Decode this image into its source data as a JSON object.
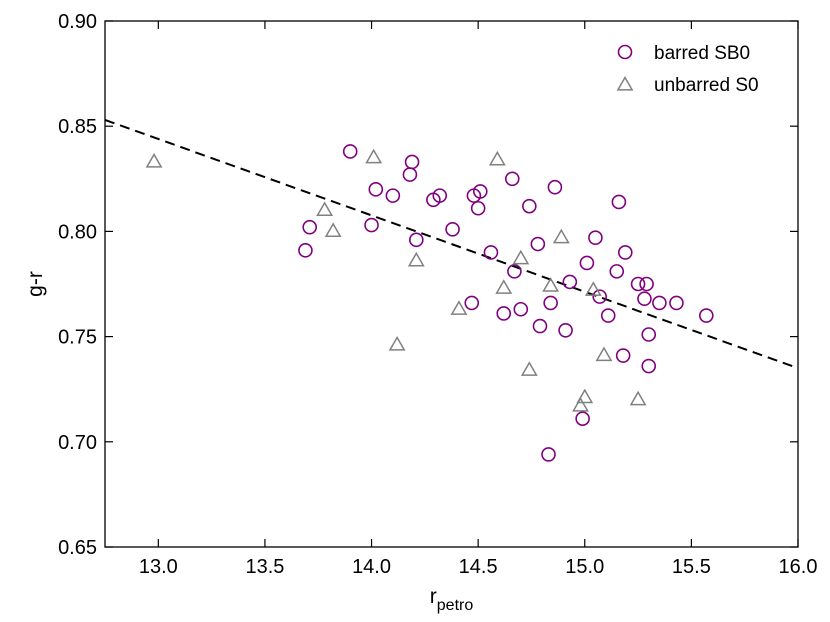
{
  "chart_data": {
    "type": "scatter",
    "title": "",
    "xlabel_main": "r",
    "xlabel_sub": "petro",
    "ylabel": "g-r",
    "xlim": [
      12.75,
      16.0
    ],
    "ylim": [
      0.65,
      0.9
    ],
    "xticks": [
      "13.0",
      "13.5",
      "14.0",
      "14.5",
      "15.0",
      "15.5",
      "16.0"
    ],
    "yticks": [
      "0.65",
      "0.70",
      "0.75",
      "0.80",
      "0.85",
      "0.90"
    ],
    "xtick_values": [
      13.0,
      13.5,
      14.0,
      14.5,
      15.0,
      15.5,
      16.0
    ],
    "ytick_values": [
      0.65,
      0.7,
      0.75,
      0.8,
      0.85,
      0.9
    ],
    "grid": false,
    "legend_position": "top-right",
    "series": [
      {
        "name": "barred SB0",
        "marker": "circle",
        "color": "#800080",
        "x": [
          13.69,
          13.71,
          13.9,
          14.0,
          14.02,
          14.1,
          14.18,
          14.19,
          14.21,
          14.29,
          14.32,
          14.38,
          14.47,
          14.48,
          14.5,
          14.51,
          14.56,
          14.62,
          14.66,
          14.67,
          14.7,
          14.74,
          14.78,
          14.79,
          14.83,
          14.84,
          14.86,
          14.91,
          14.93,
          14.99,
          15.01,
          15.05,
          15.07,
          15.11,
          15.15,
          15.16,
          15.18,
          15.19,
          15.25,
          15.28,
          15.29,
          15.3,
          15.3,
          15.35,
          15.43,
          15.57
        ],
        "y": [
          0.791,
          0.802,
          0.838,
          0.803,
          0.82,
          0.817,
          0.827,
          0.833,
          0.796,
          0.815,
          0.817,
          0.801,
          0.766,
          0.817,
          0.811,
          0.819,
          0.79,
          0.761,
          0.825,
          0.781,
          0.763,
          0.812,
          0.794,
          0.755,
          0.694,
          0.766,
          0.821,
          0.753,
          0.776,
          0.711,
          0.785,
          0.797,
          0.769,
          0.76,
          0.781,
          0.814,
          0.741,
          0.79,
          0.775,
          0.768,
          0.775,
          0.751,
          0.736,
          0.766,
          0.766,
          0.76
        ]
      },
      {
        "name": "unbarred S0",
        "marker": "triangle",
        "color": "#808080",
        "x": [
          12.98,
          13.78,
          13.82,
          14.01,
          14.12,
          14.21,
          14.41,
          14.59,
          14.62,
          14.7,
          14.74,
          14.84,
          14.89,
          14.98,
          15.0,
          15.04,
          15.09,
          15.25
        ],
        "y": [
          0.833,
          0.81,
          0.8,
          0.835,
          0.746,
          0.786,
          0.763,
          0.834,
          0.773,
          0.787,
          0.734,
          0.774,
          0.797,
          0.717,
          0.721,
          0.772,
          0.741,
          0.72
        ]
      }
    ],
    "fit_line": {
      "style": "dashed",
      "color": "#000000",
      "x": [
        12.75,
        16.0
      ],
      "y": [
        0.853,
        0.735
      ]
    }
  }
}
